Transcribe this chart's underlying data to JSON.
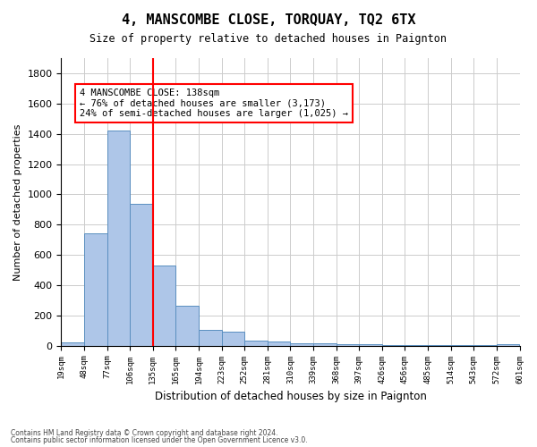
{
  "title": "4, MANSCOMBE CLOSE, TORQUAY, TQ2 6TX",
  "subtitle": "Size of property relative to detached houses in Paignton",
  "xlabel": "Distribution of detached houses by size in Paignton",
  "ylabel": "Number of detached properties",
  "bar_values": [
    22,
    740,
    1420,
    935,
    530,
    265,
    103,
    90,
    35,
    27,
    15,
    15,
    10,
    8,
    5,
    5,
    4,
    3,
    3,
    12
  ],
  "bin_labels": [
    "19sqm",
    "48sqm",
    "77sqm",
    "106sqm",
    "135sqm",
    "165sqm",
    "194sqm",
    "223sqm",
    "252sqm",
    "281sqm",
    "310sqm",
    "339sqm",
    "368sqm",
    "397sqm",
    "426sqm",
    "456sqm",
    "485sqm",
    "514sqm",
    "543sqm",
    "572sqm"
  ],
  "extra_tick": "601sqm",
  "bar_color": "#aec6e8",
  "bar_edge_color": "#5a8fc0",
  "grid_color": "#cccccc",
  "vline_x_index": 3.5,
  "vline_color": "red",
  "annotation_text": "4 MANSCOMBE CLOSE: 138sqm\n← 76% of detached houses are smaller (3,173)\n24% of semi-detached houses are larger (1,025) →",
  "annotation_box_color": "white",
  "annotation_box_edge": "red",
  "ylim": [
    0,
    1900
  ],
  "yticks": [
    0,
    200,
    400,
    600,
    800,
    1000,
    1200,
    1400,
    1600,
    1800
  ],
  "footer_line1": "Contains HM Land Registry data © Crown copyright and database right 2024.",
  "footer_line2": "Contains public sector information licensed under the Open Government Licence v3.0."
}
